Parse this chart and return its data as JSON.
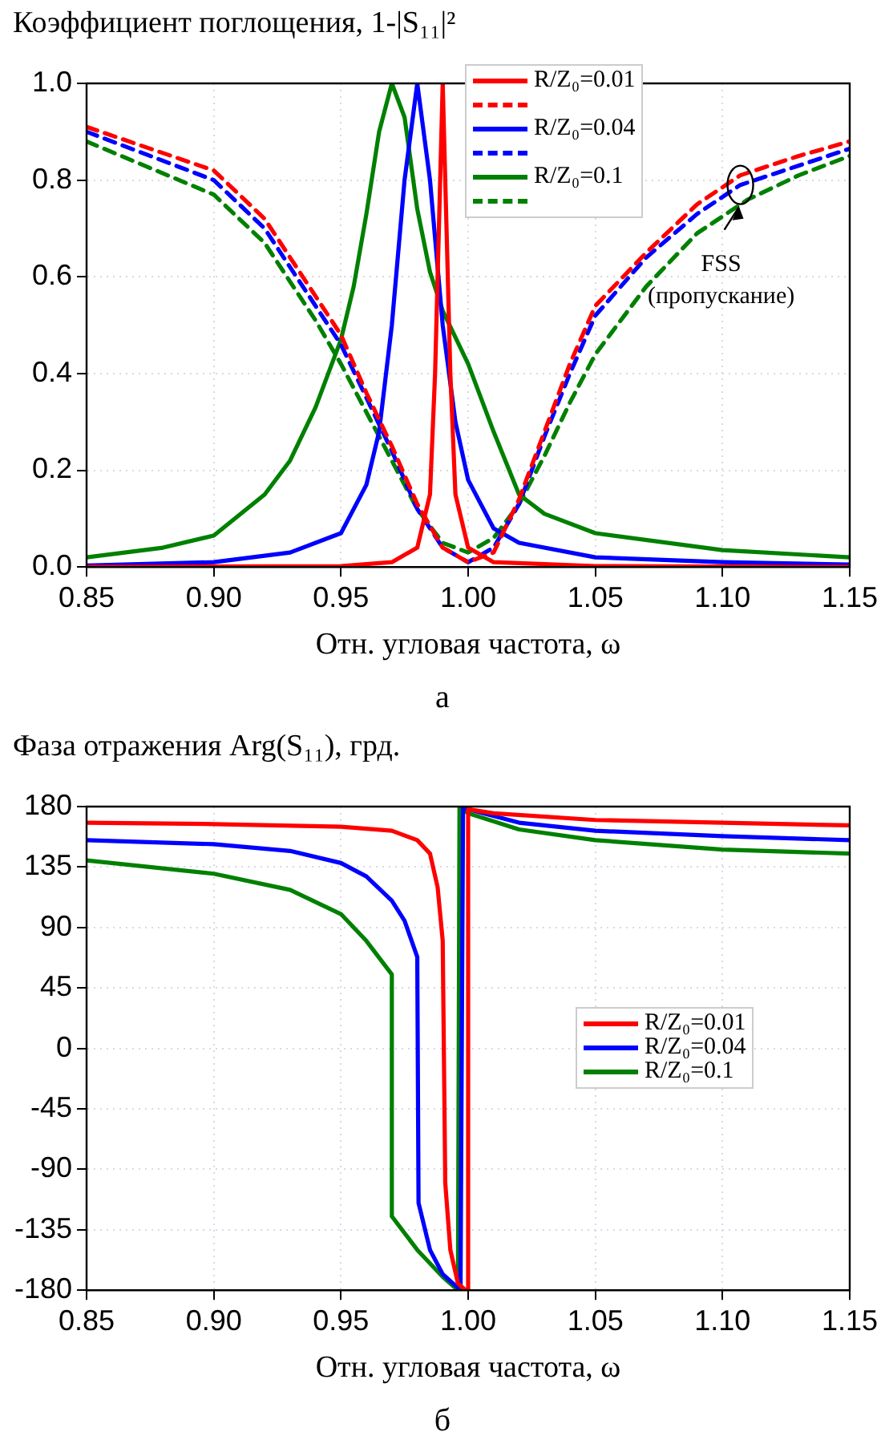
{
  "chart_data": [
    {
      "type": "line",
      "ylabel": "Коэффициент поглощения, 1-|S₁₁|²",
      "xlabel": "Отн. угловая частота, ω",
      "xlim": [
        0.85,
        1.15
      ],
      "xticks": [
        0.85,
        {
          "value": 0.9,
          "label": "0.90"
        },
        0.95,
        {
          "value": 1,
          "label": "1.00"
        },
        1.05,
        {
          "value": 1.1,
          "label": "1.10"
        },
        1.15
      ],
      "ylim": [
        0,
        1
      ],
      "yticks": [
        {
          "value": 0,
          "label": "0.0"
        },
        0.2,
        0.4,
        0.6,
        0.8,
        {
          "value": 1,
          "label": "1.0"
        }
      ],
      "grid": true,
      "legend": "top",
      "marker": "none",
      "series": [
        {
          "name": "R/Z₀=0.01",
          "color": "#ff0000",
          "x": [
            0.85,
            0.95,
            0.97,
            0.98,
            0.985,
            0.987,
            0.99,
            0.993,
            0.995,
            1.0,
            1.01,
            1.05,
            1.15
          ],
          "values": [
            0,
            0.002,
            0.01,
            0.04,
            0.15,
            0.4,
            1.0,
            0.4,
            0.15,
            0.04,
            0.01,
            0.002,
            0
          ]
        },
        {
          "color": "#ff0000",
          "line_style": "dashed",
          "x": [
            0.85,
            0.9,
            0.92,
            0.94,
            0.95,
            0.96,
            0.97,
            0.98,
            0.99,
            1.0,
            1.01,
            1.02,
            1.03,
            1.04,
            1.05,
            1.07,
            1.09,
            1.107,
            1.13,
            1.15
          ],
          "values": [
            0.91,
            0.82,
            0.72,
            0.56,
            0.48,
            0.36,
            0.25,
            0.13,
            0.04,
            0.01,
            0.03,
            0.14,
            0.28,
            0.42,
            0.54,
            0.65,
            0.75,
            0.81,
            0.85,
            0.88
          ]
        },
        {
          "name": "R/Z₀=0.04",
          "color": "#0000ff",
          "x": [
            0.85,
            0.9,
            0.93,
            0.95,
            0.96,
            0.965,
            0.97,
            0.975,
            0.98,
            0.985,
            0.99,
            0.995,
            1.0,
            1.01,
            1.02,
            1.05,
            1.1,
            1.15
          ],
          "values": [
            0.003,
            0.01,
            0.03,
            0.07,
            0.17,
            0.28,
            0.5,
            0.8,
            1.0,
            0.8,
            0.5,
            0.3,
            0.18,
            0.08,
            0.05,
            0.02,
            0.01,
            0.005
          ]
        },
        {
          "color": "#0000ff",
          "line_style": "dashed",
          "x": [
            0.85,
            0.9,
            0.92,
            0.94,
            0.95,
            0.96,
            0.97,
            0.98,
            0.99,
            1.0,
            1.01,
            1.02,
            1.03,
            1.04,
            1.05,
            1.07,
            1.09,
            1.107,
            1.13,
            1.15
          ],
          "values": [
            0.9,
            0.8,
            0.7,
            0.54,
            0.46,
            0.35,
            0.24,
            0.12,
            0.04,
            0.01,
            0.04,
            0.13,
            0.27,
            0.4,
            0.52,
            0.64,
            0.73,
            0.79,
            0.83,
            0.865
          ]
        },
        {
          "name": "R/Z₀=0.1",
          "color": "#008000",
          "x": [
            0.85,
            0.88,
            0.9,
            0.92,
            0.93,
            0.94,
            0.95,
            0.955,
            0.96,
            0.965,
            0.97,
            0.975,
            0.98,
            0.985,
            0.99,
            1.0,
            1.01,
            1.02,
            1.03,
            1.05,
            1.1,
            1.15
          ],
          "values": [
            0.02,
            0.04,
            0.065,
            0.15,
            0.22,
            0.33,
            0.47,
            0.58,
            0.73,
            0.9,
            1.0,
            0.93,
            0.74,
            0.61,
            0.53,
            0.42,
            0.28,
            0.15,
            0.11,
            0.07,
            0.035,
            0.02
          ]
        },
        {
          "color": "#008000",
          "line_style": "dashed",
          "x": [
            0.85,
            0.9,
            0.92,
            0.94,
            0.95,
            0.96,
            0.97,
            0.98,
            0.99,
            1.0,
            1.01,
            1.02,
            1.03,
            1.04,
            1.05,
            1.07,
            1.09,
            1.11,
            1.13,
            1.15
          ],
          "values": [
            0.88,
            0.77,
            0.67,
            0.51,
            0.42,
            0.32,
            0.22,
            0.12,
            0.05,
            0.03,
            0.06,
            0.13,
            0.23,
            0.34,
            0.44,
            0.58,
            0.69,
            0.76,
            0.81,
            0.85
          ]
        }
      ],
      "annotations": [
        {
          "text": "FSS (пропускание)",
          "x": 1.107,
          "y": 0.79
        },
        "а"
      ]
    },
    {
      "type": "line",
      "ylabel": "Фаза отражения  Arg(S₁₁), грд.",
      "xlabel": "Отн. угловая частота, ω",
      "xlim": [
        0.85,
        1.15
      ],
      "xticks": [
        0.85,
        {
          "value": 0.9,
          "label": "0.90"
        },
        0.95,
        {
          "value": 1,
          "label": "1.00"
        },
        1.05,
        {
          "value": 1.1,
          "label": "1.10"
        },
        1.15
      ],
      "ylim": [
        -180,
        180
      ],
      "yticks": [
        -180,
        -135,
        -90,
        -45,
        0,
        45,
        90,
        135,
        180
      ],
      "grid": true,
      "legend": "right",
      "marker": "none",
      "series": [
        {
          "name": "R/Z₀=0.01",
          "color": "#ff0000",
          "x": [
            0.85,
            0.9,
            0.95,
            0.97,
            0.98,
            0.985,
            0.988,
            0.99,
            0.991,
            0.993,
            0.996,
            0.999,
            1.0,
            1.0,
            1.01,
            1.05,
            1.1,
            1.15
          ],
          "values": [
            168,
            167,
            165,
            162,
            155,
            145,
            120,
            80,
            -100,
            -150,
            -175,
            -180,
            -180,
            178,
            175,
            170,
            168,
            166
          ]
        },
        {
          "name": "R/Z₀=0.04",
          "color": "#0000ff",
          "x": [
            0.85,
            0.9,
            0.93,
            0.95,
            0.96,
            0.97,
            0.975,
            0.98,
            0.9805,
            0.985,
            0.99,
            0.997,
            0.998,
            1.0,
            1.02,
            1.05,
            1.1,
            1.15
          ],
          "values": [
            155,
            152,
            147,
            138,
            128,
            110,
            95,
            68,
            -115,
            -150,
            -168,
            -180,
            180,
            178,
            168,
            162,
            158,
            155
          ]
        },
        {
          "name": "R/Z₀=0.1",
          "color": "#008000",
          "x": [
            0.85,
            0.9,
            0.93,
            0.95,
            0.96,
            0.97,
            0.97,
            0.98,
            0.99,
            0.996,
            0.9966,
            1.0,
            1.02,
            1.05,
            1.1,
            1.15
          ],
          "values": [
            140,
            130,
            118,
            100,
            80,
            55,
            -125,
            -150,
            -170,
            -180,
            180,
            175,
            163,
            155,
            148,
            145
          ]
        }
      ],
      "annotations": [
        "б"
      ]
    }
  ]
}
